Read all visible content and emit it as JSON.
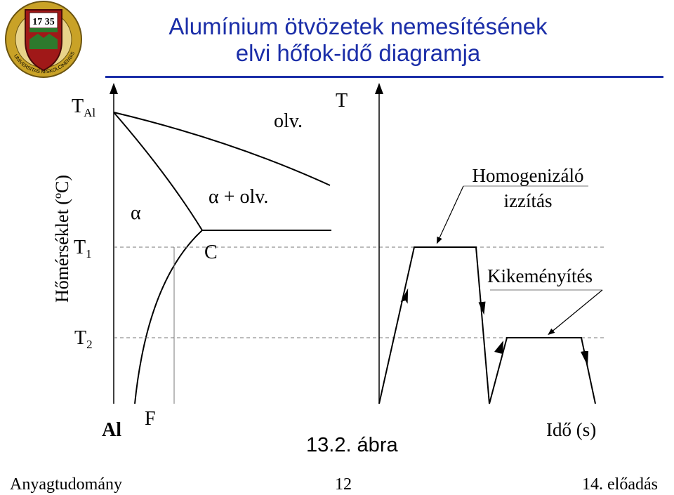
{
  "title_line1": "Alumínium ötvözetek nemesítésének",
  "title_line2": "elvi hőfok-idő diagramja",
  "seal": {
    "year": "17 35",
    "ring_text": "UNIVERSITAS MISKOLCINENSIS",
    "colors": {
      "gold": "#c9a227",
      "red": "#a01818",
      "green": "#2d7a2d"
    }
  },
  "phase_diagram": {
    "y_axis_label": "Hőmérséklet (ºC)",
    "t_al_label": "T",
    "t_al_sub": "Al",
    "t1_label": "T",
    "t1_sub": "1",
    "t2_label": "T",
    "t2_sub": "2",
    "al_label": "Al",
    "f_label": "F",
    "alpha_label": "α",
    "alpha_plus_liquid_label": "α + olv.",
    "liquid_label": "olv.",
    "c_label": "C"
  },
  "heat_treatment": {
    "t_label": "T",
    "time_axis_label": "Idő (s)",
    "homogenizing_line1": "Homogenizáló",
    "homogenizing_line2": "izzítás",
    "hardening_label": "Kikeményítés"
  },
  "figure_caption": "13.2. ábra",
  "footer": {
    "left": "Anyagtudomány",
    "center": "12",
    "right": "14. előadás"
  }
}
